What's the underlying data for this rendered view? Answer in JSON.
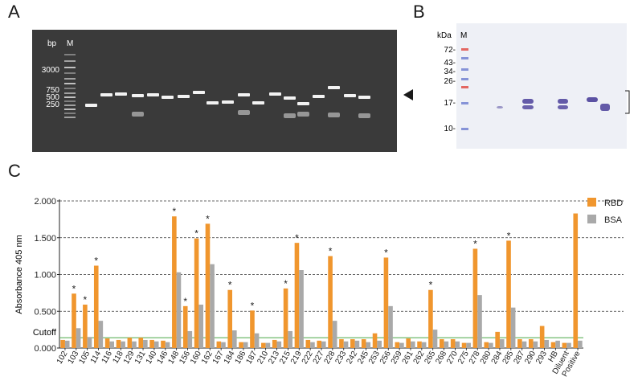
{
  "panels": {
    "a": "A",
    "b": "B",
    "c": "C"
  },
  "gel": {
    "header_bp": "bp",
    "header_marker": "M",
    "ladder_labels": [
      "3000",
      "750",
      "500",
      "250"
    ],
    "colors": {
      "background": "#3a3a3a",
      "band": "#f2f2f2",
      "arrow": "#1a1a1a"
    },
    "arrow_icon": "left-pointing-triangle"
  },
  "blot": {
    "kda_label": "kDa",
    "marker_label": "M",
    "size_labels": [
      "72-",
      "43-",
      "34-",
      "26-",
      "17-",
      "10-"
    ],
    "colors": {
      "membrane": "#eef0f6",
      "band": "#4a3f9a",
      "marker_red": "#e0453d",
      "marker_blue": "#6b7ccf"
    }
  },
  "chart_data": {
    "type": "bar",
    "ylabel": "Absorbance 405 nm",
    "ylim": [
      0,
      2.0
    ],
    "yticks": [
      "0.000",
      "0.500",
      "1.000",
      "1.500",
      "2.000"
    ],
    "grid": "dashed horizontal",
    "legend_position": "top-right",
    "cutoff": {
      "label": "Cutoff",
      "value": 0.14,
      "color": "#5fb05a"
    },
    "categories": [
      "102",
      "103",
      "105",
      "114",
      "116",
      "118",
      "129",
      "131",
      "140",
      "146",
      "148",
      "156",
      "160",
      "162",
      "167",
      "184",
      "186",
      "187",
      "210",
      "213",
      "215",
      "219",
      "222",
      "227",
      "228",
      "233",
      "242",
      "245",
      "253",
      "256",
      "259",
      "261",
      "262",
      "265",
      "268",
      "270",
      "275",
      "278",
      "280",
      "284",
      "285",
      "287",
      "290",
      "293",
      "HB",
      "Diluent",
      "Positive"
    ],
    "series": [
      {
        "name": "RBD",
        "color": "#f0962e",
        "values": [
          0.11,
          0.74,
          0.59,
          1.12,
          0.13,
          0.11,
          0.14,
          0.14,
          0.11,
          0.1,
          1.79,
          0.57,
          1.49,
          1.69,
          0.09,
          0.79,
          0.08,
          0.51,
          0.07,
          0.11,
          0.81,
          1.43,
          0.11,
          0.1,
          1.25,
          0.12,
          0.12,
          0.12,
          0.2,
          1.23,
          0.08,
          0.13,
          0.09,
          0.79,
          0.12,
          0.12,
          0.07,
          1.35,
          0.08,
          0.22,
          1.46,
          0.12,
          0.12,
          0.3,
          0.08,
          0.07,
          1.83
        ]
      },
      {
        "name": "BSA",
        "color": "#a9a9a9",
        "values": [
          0.1,
          0.27,
          0.15,
          0.37,
          0.09,
          0.09,
          0.09,
          0.11,
          0.09,
          0.08,
          1.03,
          0.23,
          0.59,
          1.14,
          0.08,
          0.24,
          0.08,
          0.2,
          0.07,
          0.09,
          0.23,
          1.06,
          0.08,
          0.09,
          0.37,
          0.09,
          0.1,
          0.08,
          0.1,
          0.57,
          0.07,
          0.09,
          0.08,
          0.25,
          0.09,
          0.09,
          0.07,
          0.72,
          0.07,
          0.12,
          0.55,
          0.09,
          0.09,
          0.11,
          0.1,
          0.07,
          0.1
        ]
      }
    ],
    "significant": [
      "103",
      "105",
      "114",
      "148",
      "156",
      "160",
      "162",
      "184",
      "187",
      "215",
      "219",
      "228",
      "256",
      "265",
      "278",
      "285"
    ],
    "significance_marker": "*"
  }
}
